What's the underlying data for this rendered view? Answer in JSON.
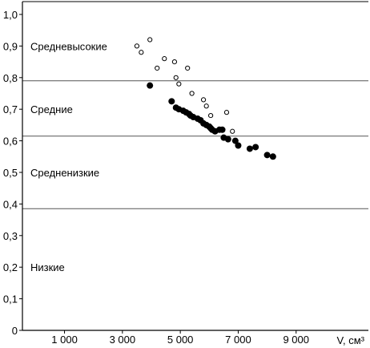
{
  "chart_data": {
    "type": "scatter",
    "title": "",
    "xlabel": "V, см³",
    "ylabel": "",
    "xlim": [
      0,
      10000
    ],
    "ylim": [
      0,
      1.0
    ],
    "grid": false,
    "x_tick_values": [
      1000,
      3000,
      5000,
      7000,
      9000
    ],
    "x_tick_labels": [
      "1 000",
      "3 000",
      "5 000",
      "7 000",
      "9 000"
    ],
    "y_tick_values": [
      0,
      0.1,
      0.2,
      0.3,
      0.4,
      0.5,
      0.6,
      0.7,
      0.8,
      0.9,
      1.0
    ],
    "y_tick_labels": [
      "0",
      "0,1",
      "0,2",
      "0,3",
      "0,4",
      "0,5",
      "0,6",
      "0,7",
      "0,8",
      "0,9",
      "1,0"
    ],
    "zone_boundaries": [
      0.385,
      0.615,
      0.79
    ],
    "zones": [
      {
        "label": "Средневысокие",
        "y": 0.9
      },
      {
        "label": "Средние",
        "y": 0.7
      },
      {
        "label": "Средненизкие",
        "y": 0.5
      },
      {
        "label": "Низкие",
        "y": 0.2
      }
    ],
    "series": [
      {
        "marker": "open-circle",
        "color": "#000000",
        "points": [
          [
            3500,
            0.9
          ],
          [
            3650,
            0.88
          ],
          [
            3950,
            0.92
          ],
          [
            4200,
            0.83
          ],
          [
            4450,
            0.86
          ],
          [
            4800,
            0.85
          ],
          [
            4850,
            0.8
          ],
          [
            4950,
            0.78
          ],
          [
            5250,
            0.83
          ],
          [
            5400,
            0.75
          ],
          [
            5800,
            0.73
          ],
          [
            5900,
            0.71
          ],
          [
            6050,
            0.68
          ],
          [
            6600,
            0.69
          ],
          [
            6800,
            0.63
          ]
        ]
      },
      {
        "marker": "filled-circle",
        "color": "#000000",
        "points": [
          [
            3950,
            0.775
          ],
          [
            4700,
            0.725
          ],
          [
            4850,
            0.705
          ],
          [
            4950,
            0.7
          ],
          [
            5100,
            0.695
          ],
          [
            5200,
            0.69
          ],
          [
            5300,
            0.685
          ],
          [
            5350,
            0.68
          ],
          [
            5450,
            0.675
          ],
          [
            5600,
            0.67
          ],
          [
            5700,
            0.665
          ],
          [
            5800,
            0.655
          ],
          [
            5900,
            0.65
          ],
          [
            6000,
            0.645
          ],
          [
            6050,
            0.64
          ],
          [
            6100,
            0.635
          ],
          [
            6200,
            0.63
          ],
          [
            6350,
            0.635
          ],
          [
            6450,
            0.635
          ],
          [
            6500,
            0.61
          ],
          [
            6650,
            0.605
          ],
          [
            6900,
            0.6
          ],
          [
            7000,
            0.585
          ],
          [
            7400,
            0.575
          ],
          [
            7600,
            0.58
          ],
          [
            8000,
            0.555
          ],
          [
            8200,
            0.55
          ]
        ]
      }
    ]
  }
}
